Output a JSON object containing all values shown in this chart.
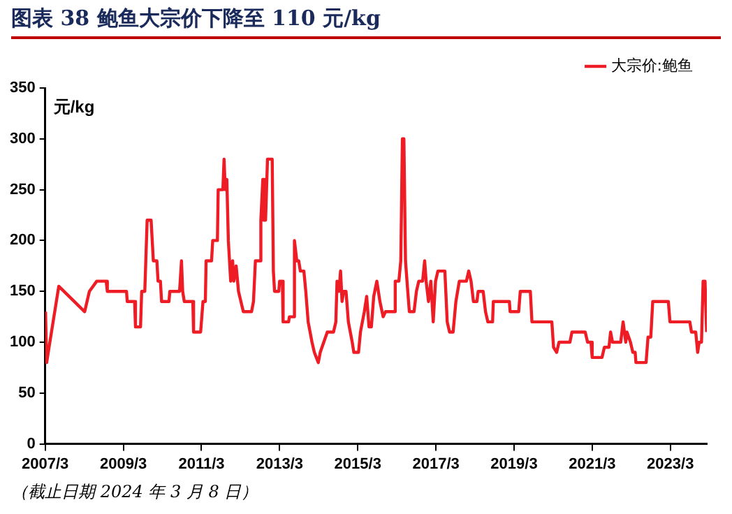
{
  "chart_data": {
    "type": "line",
    "title": "图表 38   鲍鱼大宗价下降至 110 元/kg",
    "ylabel": "元/kg",
    "annotations": [
      "（截止日期 2024 年 3 月 8 日）"
    ],
    "x": [
      "2007-03-04",
      "2007-03-15",
      "2007-04-06",
      "2007-07-06",
      "2008-03-04",
      "2008-04-17",
      "2008-06-25",
      "2008-09-21",
      "2008-10-02",
      "2009-03-30",
      "2009-04-06",
      "2009-06-14",
      "2009-06-22",
      "2009-08-08",
      "2009-08-19",
      "2009-09-17",
      "2009-10-09",
      "2009-11-15",
      "2009-12-06",
      "2010-01-08",
      "2010-01-19",
      "2010-02-10",
      "2010-02-21",
      "2010-05-01",
      "2010-05-09",
      "2010-08-08",
      "2010-08-26",
      "2010-09-06",
      "2010-09-21",
      "2010-12-10",
      "2010-12-17",
      "2011-02-21",
      "2011-03-15",
      "2011-04-06",
      "2011-04-13",
      "2011-06-03",
      "2011-06-14",
      "2011-07-28",
      "2011-08-04",
      "2011-09-17",
      "2011-09-28",
      "2011-10-09",
      "2011-10-24",
      "2011-11-07",
      "2011-11-29",
      "2011-12-17",
      "2011-12-28",
      "2012-01-19",
      "2012-02-10",
      "2012-03-26",
      "2012-06-11",
      "2012-06-29",
      "2012-07-17",
      "2012-08-30",
      "2012-09-06",
      "2012-09-24",
      "2012-10-02",
      "2012-10-13",
      "2012-10-20",
      "2012-11-07",
      "2012-12-21",
      "2013-01-01",
      "2013-01-12",
      "2013-02-21",
      "2013-02-28",
      "2013-03-26",
      "2013-04-02",
      "2013-05-23",
      "2013-05-31",
      "2013-07-10",
      "2013-07-17",
      "2013-08-08",
      "2013-08-26",
      "2013-09-10",
      "2013-10-13",
      "2013-10-31",
      "2013-11-22",
      "2013-12-28",
      "2014-01-19",
      "2014-02-25",
      "2014-03-15",
      "2014-04-17",
      "2014-05-20",
      "2014-07-17",
      "2014-08-08",
      "2014-08-19",
      "2014-09-06",
      "2014-09-21",
      "2014-10-05",
      "2014-10-20",
      "2014-11-11",
      "2014-12-03",
      "2015-01-08",
      "2015-01-23",
      "2015-03-08",
      "2015-03-26",
      "2015-05-01",
      "2015-05-23",
      "2015-06-14",
      "2015-07-06",
      "2015-07-28",
      "2015-08-26",
      "2015-09-24",
      "2015-10-24",
      "2015-11-15",
      "2016-02-03",
      "2016-02-14",
      "2016-03-19",
      "2016-04-06",
      "2016-04-21",
      "2016-05-05",
      "2016-05-20",
      "2016-06-03",
      "2016-06-25",
      "2016-08-08",
      "2016-08-30",
      "2016-09-21",
      "2016-10-27",
      "2016-11-15",
      "2016-11-29",
      "2016-12-21",
      "2017-01-12",
      "2017-02-03",
      "2017-02-25",
      "2017-03-19",
      "2017-05-23",
      "2017-06-14",
      "2017-07-06",
      "2017-08-08",
      "2017-09-03",
      "2017-10-05",
      "2017-12-10",
      "2018-01-01",
      "2018-01-23",
      "2018-02-14",
      "2018-03-19",
      "2018-03-30",
      "2018-05-16",
      "2018-06-07",
      "2018-06-29",
      "2018-08-12",
      "2018-08-19",
      "2019-01-16",
      "2019-01-23",
      "2019-04-13",
      "2019-04-28",
      "2019-07-31",
      "2019-08-15",
      "2020-02-17",
      "2020-03-04",
      "2020-04-02",
      "2020-04-24",
      "2020-08-04",
      "2020-08-23",
      "2020-12-25",
      "2021-01-16",
      "2021-02-17",
      "2021-02-28",
      "2021-05-31",
      "2021-06-22",
      "2021-08-04",
      "2021-08-19",
      "2021-09-06",
      "2021-11-22",
      "2021-12-14",
      "2022-01-08",
      "2022-01-19",
      "2022-02-21",
      "2022-03-15",
      "2022-04-06",
      "2022-04-13",
      "2022-07-17",
      "2022-08-04",
      "2022-08-30",
      "2022-09-17",
      "2023-02-10",
      "2023-02-25",
      "2023-08-30",
      "2023-09-14",
      "2023-10-24",
      "2023-11-11",
      "2023-11-25",
      "2023-12-17",
      "2024-01-01",
      "2024-01-19",
      "2024-02-03"
    ],
    "series": [
      {
        "name": "大宗价:鲍鱼",
        "color": "#ee1c25",
        "values": [
          130,
          80,
          95,
          155,
          130,
          150,
          160,
          160,
          150,
          150,
          140,
          140,
          115,
          115,
          150,
          150,
          220,
          220,
          180,
          180,
          160,
          160,
          140,
          140,
          150,
          150,
          180,
          150,
          140,
          140,
          110,
          110,
          140,
          140,
          180,
          180,
          200,
          200,
          250,
          250,
          280,
          250,
          260,
          200,
          160,
          180,
          160,
          175,
          150,
          130,
          130,
          140,
          180,
          180,
          220,
          260,
          220,
          260,
          220,
          280,
          280,
          170,
          150,
          150,
          160,
          160,
          120,
          120,
          125,
          125,
          200,
          180,
          180,
          170,
          170,
          150,
          120,
          100,
          90,
          80,
          90,
          100,
          110,
          110,
          120,
          160,
          150,
          170,
          140,
          150,
          150,
          120,
          100,
          90,
          90,
          110,
          130,
          145,
          115,
          115,
          145,
          160,
          140,
          125,
          130,
          130,
          160,
          160,
          180,
          300,
          300,
          180,
          160,
          130,
          130,
          150,
          160,
          160,
          180,
          160,
          140,
          160,
          120,
          160,
          170,
          170,
          120,
          110,
          110,
          140,
          160,
          160,
          170,
          160,
          140,
          140,
          150,
          150,
          130,
          120,
          120,
          140,
          140,
          130,
          130,
          150,
          150,
          120,
          120,
          95,
          90,
          100,
          100,
          110,
          110,
          100,
          100,
          85,
          85,
          95,
          95,
          110,
          100,
          100,
          120,
          100,
          110,
          100,
          90,
          90,
          80,
          80,
          105,
          105,
          140,
          140,
          120,
          120,
          110,
          110,
          90,
          100,
          100,
          160,
          160,
          110
        ]
      }
    ],
    "xlim": [
      "2007-03-01",
      "2024-02-05"
    ],
    "xticks": [
      {
        "value": "2007-03",
        "label": "2007/3"
      },
      {
        "value": "2009-03",
        "label": "2009/3"
      },
      {
        "value": "2011-03",
        "label": "2011/3"
      },
      {
        "value": "2013-03",
        "label": "2013/3"
      },
      {
        "value": "2015-03",
        "label": "2015/3"
      },
      {
        "value": "2017-03",
        "label": "2017/3"
      },
      {
        "value": "2019-03",
        "label": "2019/3"
      },
      {
        "value": "2021-03",
        "label": "2021/3"
      },
      {
        "value": "2023-03",
        "label": "2023/3"
      }
    ],
    "ylim": [
      0,
      350
    ],
    "yticks": [
      0,
      50,
      100,
      150,
      200,
      250,
      300,
      350
    ],
    "legend": "top right",
    "marker": "none",
    "line_style": "solid"
  }
}
